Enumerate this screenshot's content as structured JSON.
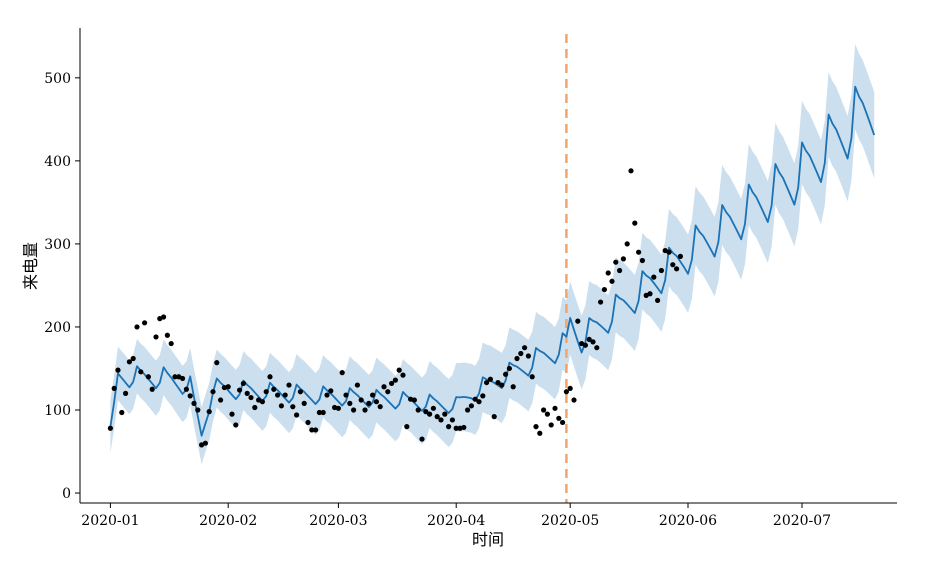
{
  "chart_data": {
    "type": "line",
    "title": "",
    "xlabel": "时间",
    "ylabel": "来电量",
    "x_tick_labels": [
      "2020-01",
      "2020-02",
      "2020-03",
      "2020-04",
      "2020-05",
      "2020-06",
      "2020-07"
    ],
    "y_tick_labels": [
      "0",
      "100",
      "200",
      "300",
      "400",
      "500"
    ],
    "xlim": [
      "2019-12-24",
      "2020-07-26"
    ],
    "ylim": [
      -12,
      560
    ],
    "grid": false,
    "legend": "none",
    "vline": {
      "x": "2020-04-30",
      "style": "dashed",
      "color": "#f4a46a"
    },
    "colors": {
      "forecast": "#1b72b5",
      "band": "#b9d4ea",
      "observed": "#000000"
    },
    "series": [
      {
        "kind": "forecast",
        "anchors": [
          [
            "2020-01-01",
            80
          ],
          [
            "2020-01-03",
            140
          ],
          [
            "2020-01-15",
            138
          ],
          [
            "2020-01-22",
            128
          ],
          [
            "2020-01-25",
            70
          ],
          [
            "2020-01-28",
            126
          ],
          [
            "2020-02-15",
            120
          ],
          [
            "2020-03-15",
            112
          ],
          [
            "2020-04-01",
            105
          ],
          [
            "2020-04-05",
            120
          ],
          [
            "2020-04-30",
            178
          ],
          [
            "2020-05-01",
            205
          ],
          [
            "2020-05-04",
            185
          ],
          [
            "2020-05-31",
            285
          ],
          [
            "2020-06-30",
            382
          ],
          [
            "2020-07-20",
            470
          ]
        ]
      },
      {
        "kind": "observed",
        "points": [
          [
            "2020-01-01",
            78
          ],
          [
            "2020-01-02",
            126
          ],
          [
            "2020-01-03",
            148
          ],
          [
            "2020-01-04",
            97
          ],
          [
            "2020-01-05",
            120
          ],
          [
            "2020-01-06",
            158
          ],
          [
            "2020-01-07",
            162
          ],
          [
            "2020-01-08",
            200
          ],
          [
            "2020-01-09",
            146
          ],
          [
            "2020-01-10",
            205
          ],
          [
            "2020-01-11",
            140
          ],
          [
            "2020-01-12",
            125
          ],
          [
            "2020-01-13",
            188
          ],
          [
            "2020-01-14",
            210
          ],
          [
            "2020-01-15",
            212
          ],
          [
            "2020-01-16",
            190
          ],
          [
            "2020-01-17",
            180
          ],
          [
            "2020-01-18",
            140
          ],
          [
            "2020-01-19",
            140
          ],
          [
            "2020-01-20",
            138
          ],
          [
            "2020-01-21",
            125
          ],
          [
            "2020-01-22",
            117
          ],
          [
            "2020-01-23",
            108
          ],
          [
            "2020-01-24",
            100
          ],
          [
            "2020-01-25",
            58
          ],
          [
            "2020-01-26",
            60
          ],
          [
            "2020-01-27",
            98
          ],
          [
            "2020-01-28",
            122
          ],
          [
            "2020-01-29",
            157
          ],
          [
            "2020-01-30",
            112
          ],
          [
            "2020-01-31",
            127
          ],
          [
            "2020-02-01",
            128
          ],
          [
            "2020-02-02",
            95
          ],
          [
            "2020-02-03",
            82
          ],
          [
            "2020-02-04",
            124
          ],
          [
            "2020-02-05",
            132
          ],
          [
            "2020-02-06",
            120
          ],
          [
            "2020-02-07",
            115
          ],
          [
            "2020-02-08",
            103
          ],
          [
            "2020-02-09",
            112
          ],
          [
            "2020-02-10",
            110
          ],
          [
            "2020-02-11",
            122
          ],
          [
            "2020-02-12",
            140
          ],
          [
            "2020-02-13",
            125
          ],
          [
            "2020-02-14",
            118
          ],
          [
            "2020-02-15",
            105
          ],
          [
            "2020-02-16",
            118
          ],
          [
            "2020-02-17",
            130
          ],
          [
            "2020-02-18",
            104
          ],
          [
            "2020-02-19",
            94
          ],
          [
            "2020-02-20",
            122
          ],
          [
            "2020-02-21",
            108
          ],
          [
            "2020-02-22",
            85
          ],
          [
            "2020-02-23",
            76
          ],
          [
            "2020-02-24",
            76
          ],
          [
            "2020-02-25",
            97
          ],
          [
            "2020-02-26",
            97
          ],
          [
            "2020-02-27",
            118
          ],
          [
            "2020-02-28",
            123
          ],
          [
            "2020-02-29",
            103
          ],
          [
            "2020-03-01",
            102
          ],
          [
            "2020-03-02",
            145
          ],
          [
            "2020-03-03",
            118
          ],
          [
            "2020-03-04",
            108
          ],
          [
            "2020-03-05",
            100
          ],
          [
            "2020-03-06",
            130
          ],
          [
            "2020-03-07",
            112
          ],
          [
            "2020-03-08",
            100
          ],
          [
            "2020-03-09",
            108
          ],
          [
            "2020-03-10",
            118
          ],
          [
            "2020-03-11",
            110
          ],
          [
            "2020-03-12",
            104
          ],
          [
            "2020-03-13",
            128
          ],
          [
            "2020-03-14",
            122
          ],
          [
            "2020-03-15",
            132
          ],
          [
            "2020-03-16",
            136
          ],
          [
            "2020-03-17",
            148
          ],
          [
            "2020-03-18",
            142
          ],
          [
            "2020-03-19",
            80
          ],
          [
            "2020-03-20",
            113
          ],
          [
            "2020-03-21",
            112
          ],
          [
            "2020-03-22",
            100
          ],
          [
            "2020-03-23",
            65
          ],
          [
            "2020-03-24",
            98
          ],
          [
            "2020-03-25",
            95
          ],
          [
            "2020-03-26",
            102
          ],
          [
            "2020-03-27",
            92
          ],
          [
            "2020-03-28",
            88
          ],
          [
            "2020-03-29",
            95
          ],
          [
            "2020-03-30",
            80
          ],
          [
            "2020-03-31",
            88
          ],
          [
            "2020-04-01",
            78
          ],
          [
            "2020-04-02",
            78
          ],
          [
            "2020-04-03",
            79
          ],
          [
            "2020-04-04",
            100
          ],
          [
            "2020-04-05",
            105
          ],
          [
            "2020-04-06",
            113
          ],
          [
            "2020-04-07",
            110
          ],
          [
            "2020-04-08",
            117
          ],
          [
            "2020-04-09",
            133
          ],
          [
            "2020-04-10",
            137
          ],
          [
            "2020-04-11",
            92
          ],
          [
            "2020-04-12",
            133
          ],
          [
            "2020-04-13",
            130
          ],
          [
            "2020-04-14",
            143
          ],
          [
            "2020-04-15",
            150
          ],
          [
            "2020-04-16",
            128
          ],
          [
            "2020-04-17",
            162
          ],
          [
            "2020-04-18",
            168
          ],
          [
            "2020-04-19",
            175
          ],
          [
            "2020-04-20",
            165
          ],
          [
            "2020-04-21",
            140
          ],
          [
            "2020-04-22",
            80
          ],
          [
            "2020-04-23",
            72
          ],
          [
            "2020-04-24",
            100
          ],
          [
            "2020-04-25",
            95
          ],
          [
            "2020-04-26",
            82
          ],
          [
            "2020-04-27",
            102
          ],
          [
            "2020-04-28",
            90
          ],
          [
            "2020-04-29",
            85
          ],
          [
            "2020-04-30",
            122
          ],
          [
            "2020-05-01",
            126
          ],
          [
            "2020-05-02",
            112
          ],
          [
            "2020-05-03",
            207
          ],
          [
            "2020-05-04",
            180
          ],
          [
            "2020-05-05",
            178
          ],
          [
            "2020-05-06",
            185
          ],
          [
            "2020-05-07",
            182
          ],
          [
            "2020-05-08",
            175
          ],
          [
            "2020-05-09",
            230
          ],
          [
            "2020-05-10",
            245
          ],
          [
            "2020-05-11",
            265
          ],
          [
            "2020-05-12",
            255
          ],
          [
            "2020-05-13",
            278
          ],
          [
            "2020-05-14",
            268
          ],
          [
            "2020-05-15",
            282
          ],
          [
            "2020-05-16",
            300
          ],
          [
            "2020-05-17",
            388
          ],
          [
            "2020-05-18",
            325
          ],
          [
            "2020-05-19",
            290
          ],
          [
            "2020-05-20",
            280
          ],
          [
            "2020-05-21",
            238
          ],
          [
            "2020-05-22",
            240
          ],
          [
            "2020-05-23",
            260
          ],
          [
            "2020-05-24",
            232
          ],
          [
            "2020-05-25",
            268
          ],
          [
            "2020-05-26",
            292
          ],
          [
            "2020-05-27",
            290
          ],
          [
            "2020-05-28",
            275
          ],
          [
            "2020-05-29",
            270
          ],
          [
            "2020-05-30",
            285
          ]
        ]
      }
    ]
  }
}
